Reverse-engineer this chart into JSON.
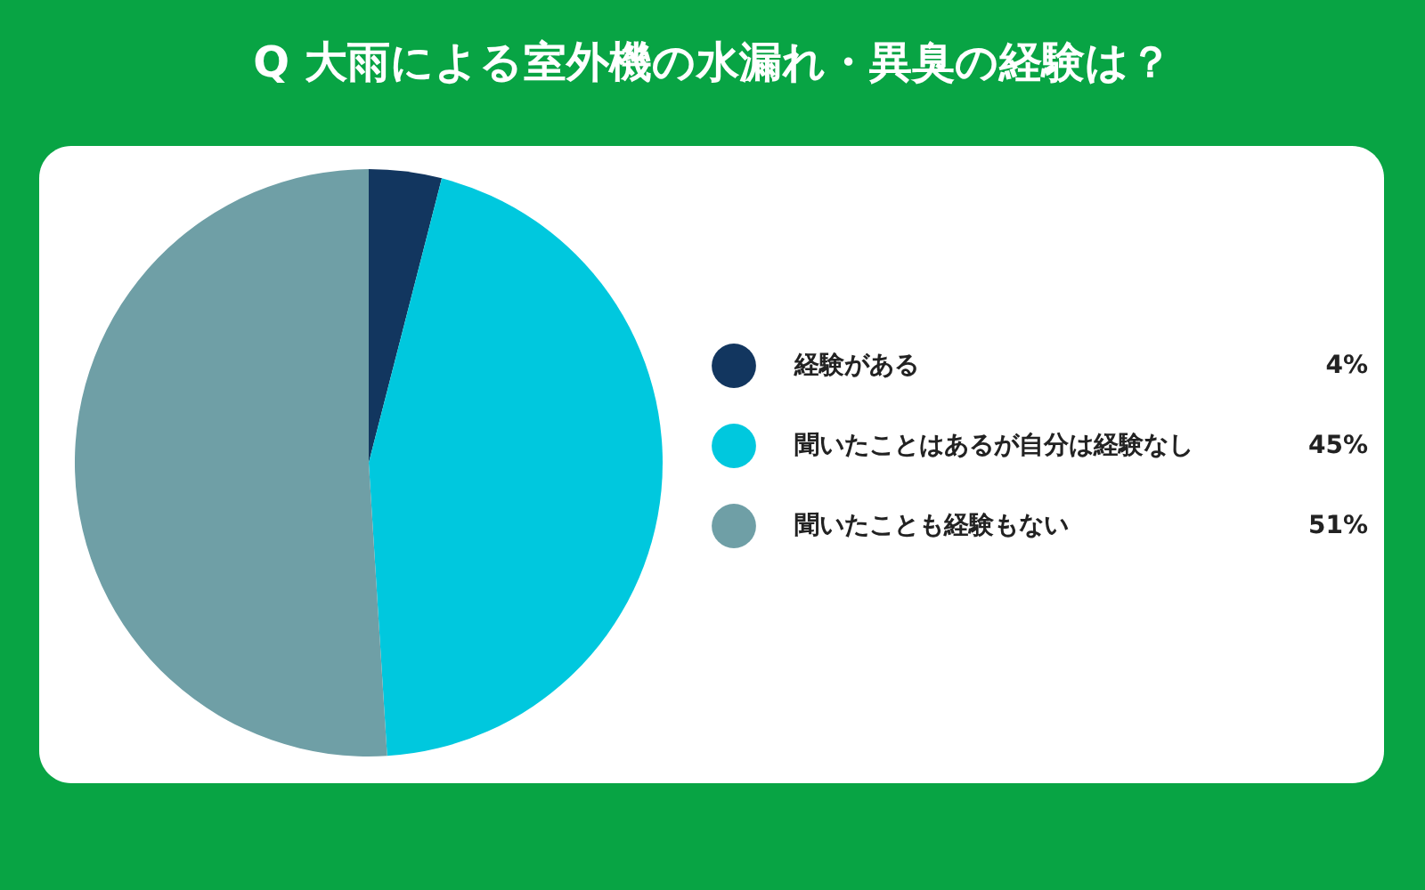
{
  "chart_data": {
    "type": "pie",
    "title": "Q 大雨による室外機の水漏れ・異臭の経験は？",
    "categories": [
      "経験がある",
      "聞いたことはあるが自分は経験なし",
      "聞いたことも経験もない"
    ],
    "values": [
      4,
      45,
      51
    ],
    "value_labels": [
      "4%",
      "45%",
      "51%"
    ],
    "colors": [
      "#12365f",
      "#00c8de",
      "#6f9fa6"
    ],
    "legend": "right"
  }
}
